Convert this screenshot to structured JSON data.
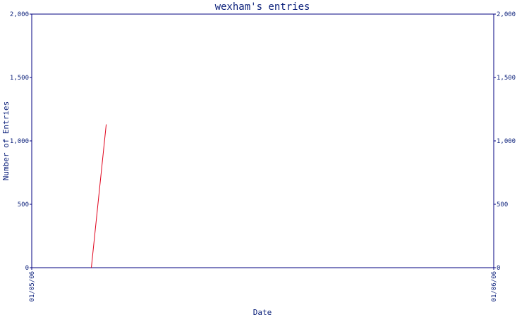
{
  "chart_data": {
    "type": "line",
    "title": "wexham's entries",
    "xlabel": "Date",
    "ylabel": "Number of Entries",
    "x_ticks": [
      "01/05/06",
      "01/06/06"
    ],
    "y_ticks": [
      "0",
      "500",
      "1,000",
      "1,500",
      "2,000"
    ],
    "ylim": [
      0,
      2000
    ],
    "xlim": [
      "2006-05-01",
      "2006-06-01"
    ],
    "grid": false,
    "secondary_y_axis": true,
    "colors": {
      "axis": "#000080",
      "text": "#0a1f7a",
      "series": "#e0001a"
    },
    "series": [
      {
        "color": "#e0001a",
        "points": [
          {
            "x": "2006-05-05",
            "y": 0
          },
          {
            "x": "2006-05-06",
            "y": 1130
          }
        ]
      }
    ]
  }
}
